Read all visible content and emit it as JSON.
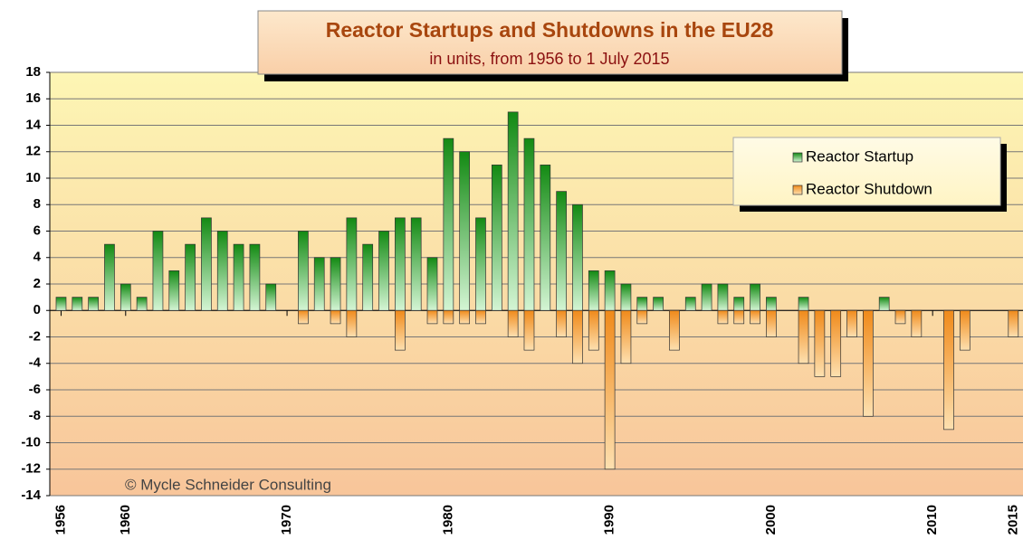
{
  "chart_data": {
    "type": "bar",
    "title": "Reactor Startups and Shutdowns in the EU28",
    "subtitle": "in units, from 1956 to 1 July 2015",
    "annotation": "© Mycle Schneider Consulting",
    "x": [
      1956,
      1957,
      1958,
      1959,
      1960,
      1961,
      1962,
      1963,
      1964,
      1965,
      1966,
      1967,
      1968,
      1969,
      1970,
      1971,
      1972,
      1973,
      1974,
      1975,
      1976,
      1977,
      1978,
      1979,
      1980,
      1981,
      1982,
      1983,
      1984,
      1985,
      1986,
      1987,
      1988,
      1989,
      1990,
      1991,
      1992,
      1993,
      1994,
      1995,
      1996,
      1997,
      1998,
      1999,
      2000,
      2001,
      2002,
      2003,
      2004,
      2005,
      2006,
      2007,
      2008,
      2009,
      2010,
      2011,
      2012,
      2013,
      2014,
      2015
    ],
    "series": [
      {
        "name": "Reactor Startup",
        "color": "#1a8a1a",
        "values": [
          1,
          1,
          1,
          5,
          2,
          1,
          6,
          3,
          5,
          7,
          6,
          5,
          5,
          2,
          0,
          6,
          4,
          4,
          7,
          5,
          6,
          7,
          7,
          4,
          13,
          12,
          7,
          11,
          15,
          13,
          11,
          9,
          8,
          3,
          3,
          2,
          1,
          1,
          0,
          1,
          2,
          2,
          1,
          2,
          1,
          0,
          1,
          0,
          0,
          0,
          0,
          1,
          0,
          0,
          0,
          0,
          0,
          0,
          0,
          0
        ]
      },
      {
        "name": "Reactor Shutdown",
        "color": "#f08a1a",
        "values": [
          0,
          0,
          0,
          0,
          0,
          0,
          0,
          0,
          0,
          0,
          0,
          0,
          0,
          0,
          0,
          -1,
          0,
          -1,
          -2,
          0,
          0,
          -3,
          0,
          -1,
          -1,
          -1,
          -1,
          0,
          -2,
          -3,
          0,
          -2,
          -4,
          -3,
          -12,
          -4,
          -1,
          0,
          -3,
          0,
          0,
          -1,
          -1,
          -1,
          -2,
          0,
          -4,
          -5,
          -5,
          -2,
          -8,
          0,
          -1,
          -2,
          0,
          -9,
          -3,
          0,
          0,
          -2
        ]
      }
    ],
    "xlim": [
      1955.3,
      2015.6
    ],
    "xticks": [
      1956,
      1960,
      1970,
      1980,
      1990,
      2000,
      2010,
      2015
    ],
    "ylim": [
      -14,
      18
    ],
    "yticks": [
      -14,
      -12,
      -10,
      -8,
      -6,
      -4,
      -2,
      0,
      2,
      4,
      6,
      8,
      10,
      12,
      14,
      16,
      18
    ],
    "grid": true,
    "legend": "upper right"
  }
}
